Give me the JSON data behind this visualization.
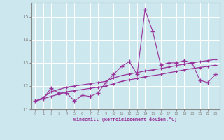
{
  "xlabel": "Windchill (Refroidissement éolien,°C)",
  "background_color": "#cce8ee",
  "line_color": "#993399",
  "grid_color": "#ffffff",
  "spine_color": "#888888",
  "xlim": [
    -0.5,
    23.5
  ],
  "ylim": [
    11.0,
    15.6
  ],
  "yticks": [
    11,
    12,
    13,
    14,
    15
  ],
  "xticks": [
    0,
    1,
    2,
    3,
    4,
    5,
    6,
    7,
    8,
    9,
    10,
    11,
    12,
    13,
    14,
    15,
    16,
    17,
    18,
    19,
    20,
    21,
    22,
    23
  ],
  "x": [
    0,
    1,
    2,
    3,
    4,
    5,
    6,
    7,
    8,
    9,
    10,
    11,
    12,
    13,
    14,
    15,
    16,
    17,
    18,
    19,
    20,
    21,
    22,
    23
  ],
  "line1": [
    11.35,
    11.45,
    11.9,
    11.7,
    11.7,
    11.35,
    11.6,
    11.55,
    11.7,
    12.15,
    12.5,
    12.85,
    13.05,
    12.5,
    15.3,
    14.35,
    12.9,
    13.0,
    13.0,
    13.1,
    13.0,
    12.25,
    12.15,
    12.5
  ],
  "line2": [
    11.35,
    11.5,
    11.75,
    11.85,
    11.95,
    12.0,
    12.05,
    12.1,
    12.15,
    12.2,
    12.35,
    12.45,
    12.52,
    12.58,
    12.65,
    12.7,
    12.75,
    12.82,
    12.88,
    12.95,
    13.0,
    13.05,
    13.1,
    13.15
  ],
  "line3": [
    11.35,
    11.45,
    11.55,
    11.65,
    11.75,
    11.8,
    11.85,
    11.9,
    11.95,
    12.0,
    12.1,
    12.2,
    12.27,
    12.33,
    12.4,
    12.45,
    12.5,
    12.57,
    12.63,
    12.7,
    12.75,
    12.8,
    12.85,
    12.9
  ]
}
